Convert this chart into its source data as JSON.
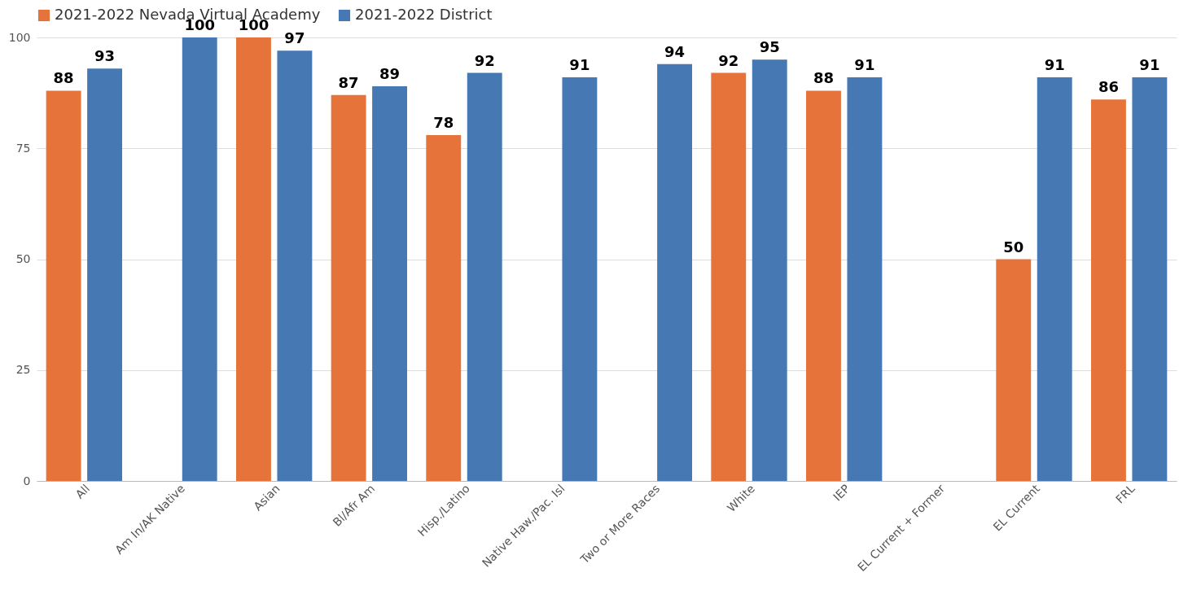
{
  "chart_data": {
    "type": "bar",
    "categories": [
      "All",
      "Am In/AK Native",
      "Asian",
      "Bl/Afr Am",
      "Hisp./Latino",
      "Native Haw./Pac. Isl",
      "Two or More Races",
      "White",
      "IEP",
      "EL Current + Former",
      "EL Current",
      "FRL"
    ],
    "series": [
      {
        "name": "2021-2022 Nevada Virtual Academy",
        "color": "#e5733a",
        "values": [
          88,
          null,
          100,
          87,
          78,
          null,
          null,
          92,
          88,
          null,
          50,
          86
        ]
      },
      {
        "name": "2021-2022 District",
        "color": "#4679b4",
        "values": [
          93,
          100,
          97,
          89,
          92,
          91,
          94,
          95,
          91,
          null,
          91,
          91
        ]
      }
    ],
    "ylim": [
      0,
      100
    ],
    "yticks": [
      0,
      25,
      50,
      75,
      100
    ],
    "grid": "y",
    "legend": "top",
    "data_labels": true
  }
}
